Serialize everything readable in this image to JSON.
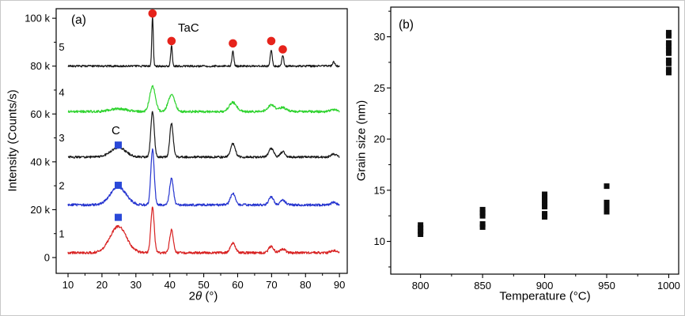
{
  "figure": {
    "background": "#ffffff",
    "border_color": "#c8c8c8"
  },
  "chart_data": [
    {
      "type": "line",
      "name": "xrd-patterns",
      "panel_label": "(a)",
      "xlabel_prefix": "2",
      "xlabel_theta": "θ",
      "xlabel_suffix": " (°)",
      "ylabel": "Intensity (Counts/s)",
      "xlim": [
        6.5,
        92.3
      ],
      "ylim_k": [
        -6.6,
        104
      ],
      "x_ticks": [
        10,
        20,
        30,
        40,
        50,
        60,
        70,
        80,
        90
      ],
      "y_ticks": [
        {
          "value": 0,
          "label": "0"
        },
        {
          "value": 20,
          "label": "20 k"
        },
        {
          "value": 40,
          "label": "40 k"
        },
        {
          "value": 60,
          "label": "60 k"
        },
        {
          "value": 80,
          "label": "80 k"
        },
        {
          "value": 100,
          "label": "100 k"
        }
      ],
      "series": [
        {
          "name": "1",
          "color": "#d82121",
          "baseline_k": 2,
          "noise_k": 0.5,
          "peaks": [
            {
              "two_theta": 24.8,
              "height_k": 11.0,
              "sigma": 2.4,
              "phase": "C"
            },
            {
              "two_theta": 34.9,
              "height_k": 19.0,
              "sigma": 0.5,
              "phase": "TaC"
            },
            {
              "two_theta": 40.5,
              "height_k": 9.5,
              "sigma": 0.55,
              "phase": "TaC"
            },
            {
              "two_theta": 58.6,
              "height_k": 4.0,
              "sigma": 0.75,
              "phase": "TaC"
            },
            {
              "two_theta": 69.9,
              "height_k": 2.6,
              "sigma": 0.75,
              "phase": "TaC"
            },
            {
              "two_theta": 73.3,
              "height_k": 1.6,
              "sigma": 0.75,
              "phase": "TaC"
            },
            {
              "two_theta": 88.3,
              "height_k": 0.9,
              "sigma": 0.8,
              "phase": "TaC"
            }
          ]
        },
        {
          "name": "2",
          "color": "#2433cf",
          "baseline_k": 22,
          "noise_k": 0.5,
          "peaks": [
            {
              "two_theta": 24.8,
              "height_k": 7.5,
              "sigma": 2.3,
              "phase": "C"
            },
            {
              "two_theta": 34.9,
              "height_k": 23.0,
              "sigma": 0.5,
              "phase": "TaC"
            },
            {
              "two_theta": 40.5,
              "height_k": 11.0,
              "sigma": 0.55,
              "phase": "TaC"
            },
            {
              "two_theta": 58.6,
              "height_k": 4.8,
              "sigma": 0.75,
              "phase": "TaC"
            },
            {
              "two_theta": 69.9,
              "height_k": 3.2,
              "sigma": 0.75,
              "phase": "TaC"
            },
            {
              "two_theta": 73.3,
              "height_k": 2.0,
              "sigma": 0.75,
              "phase": "TaC"
            },
            {
              "two_theta": 88.3,
              "height_k": 1.0,
              "sigma": 0.8,
              "phase": "TaC"
            }
          ]
        },
        {
          "name": "3",
          "color": "#1a1a1a",
          "baseline_k": 42,
          "noise_k": 0.45,
          "peaks": [
            {
              "two_theta": 24.8,
              "height_k": 4.0,
              "sigma": 2.2,
              "phase": "C"
            },
            {
              "two_theta": 34.9,
              "height_k": 19.0,
              "sigma": 0.5,
              "phase": "TaC"
            },
            {
              "two_theta": 40.5,
              "height_k": 14.0,
              "sigma": 0.5,
              "phase": "TaC"
            },
            {
              "two_theta": 58.6,
              "height_k": 5.5,
              "sigma": 0.7,
              "phase": "TaC"
            },
            {
              "two_theta": 69.9,
              "height_k": 3.6,
              "sigma": 0.7,
              "phase": "TaC"
            },
            {
              "two_theta": 73.3,
              "height_k": 2.2,
              "sigma": 0.7,
              "phase": "TaC"
            },
            {
              "two_theta": 88.3,
              "height_k": 1.2,
              "sigma": 0.8,
              "phase": "TaC"
            }
          ]
        },
        {
          "name": "4",
          "color": "#2fd32f",
          "baseline_k": 61,
          "noise_k": 0.5,
          "peaks": [
            {
              "two_theta": 24.8,
              "height_k": 1.2,
              "sigma": 2.5,
              "phase": "C"
            },
            {
              "two_theta": 34.9,
              "height_k": 10.5,
              "sigma": 0.85,
              "phase": "TaC"
            },
            {
              "two_theta": 40.5,
              "height_k": 7.0,
              "sigma": 0.95,
              "phase": "TaC"
            },
            {
              "two_theta": 58.6,
              "height_k": 3.8,
              "sigma": 1.1,
              "phase": "TaC"
            },
            {
              "two_theta": 69.9,
              "height_k": 2.6,
              "sigma": 1.1,
              "phase": "TaC"
            },
            {
              "two_theta": 73.3,
              "height_k": 1.6,
              "sigma": 1.1,
              "phase": "TaC"
            },
            {
              "two_theta": 88.3,
              "height_k": 0.8,
              "sigma": 1.0,
              "phase": "TaC"
            }
          ]
        },
        {
          "name": "5",
          "color": "#1a1a1a",
          "baseline_k": 80,
          "noise_k": 0.4,
          "peaks": [
            {
              "two_theta": 34.9,
              "height_k": 21.0,
              "sigma": 0.22,
              "phase": "TaC"
            },
            {
              "two_theta": 40.5,
              "height_k": 8.5,
              "sigma": 0.25,
              "phase": "TaC"
            },
            {
              "two_theta": 58.6,
              "height_k": 6.0,
              "sigma": 0.28,
              "phase": "TaC"
            },
            {
              "two_theta": 69.9,
              "height_k": 7.0,
              "sigma": 0.28,
              "phase": "TaC"
            },
            {
              "two_theta": 73.3,
              "height_k": 4.5,
              "sigma": 0.28,
              "phase": "TaC"
            },
            {
              "two_theta": 88.3,
              "height_k": 2.0,
              "sigma": 0.3,
              "phase": "TaC"
            }
          ]
        }
      ],
      "markers": {
        "tac": {
          "label": "TaC",
          "color": "#e6231b",
          "shape": "circle",
          "points": [
            [
              34.9,
              102.0
            ],
            [
              40.5,
              90.5
            ],
            [
              58.6,
              89.5
            ],
            [
              69.9,
              90.5
            ],
            [
              73.3,
              87.0
            ]
          ]
        },
        "c": {
          "label": "C",
          "color": "#2a49d8",
          "shape": "square",
          "points": [
            [
              24.8,
              47.0
            ],
            [
              24.8,
              30.2
            ],
            [
              24.8,
              16.8
            ]
          ]
        }
      }
    },
    {
      "type": "scatter",
      "name": "grain-size-vs-temperature",
      "panel_label": "(b)",
      "xlabel": "Temperature (°C)",
      "ylabel": "Grain size (nm)",
      "xlim": [
        776,
        1008
      ],
      "ylim": [
        6.8,
        32.9
      ],
      "x_ticks": [
        800,
        850,
        900,
        950,
        1000
      ],
      "y_ticks": [
        10,
        15,
        20,
        25,
        30
      ],
      "marker_color": "#0d0d0d",
      "points": [
        {
          "temperature_c": 800,
          "grain_sizes_nm": [
            10.7,
            11.0,
            11.3,
            11.6
          ]
        },
        {
          "temperature_c": 850,
          "grain_sizes_nm": [
            11.4,
            11.7,
            12.5,
            12.8,
            13.1
          ]
        },
        {
          "temperature_c": 900,
          "grain_sizes_nm": [
            12.4,
            12.7,
            13.4,
            13.7,
            14.0,
            14.3,
            14.6
          ]
        },
        {
          "temperature_c": 950,
          "grain_sizes_nm": [
            12.9,
            13.2,
            13.5,
            13.8,
            15.4
          ]
        },
        {
          "temperature_c": 1000,
          "grain_sizes_nm": [
            26.5,
            26.8,
            27.4,
            27.7,
            28.4,
            28.7,
            29.1,
            29.4,
            30.1,
            30.4
          ]
        }
      ]
    }
  ]
}
